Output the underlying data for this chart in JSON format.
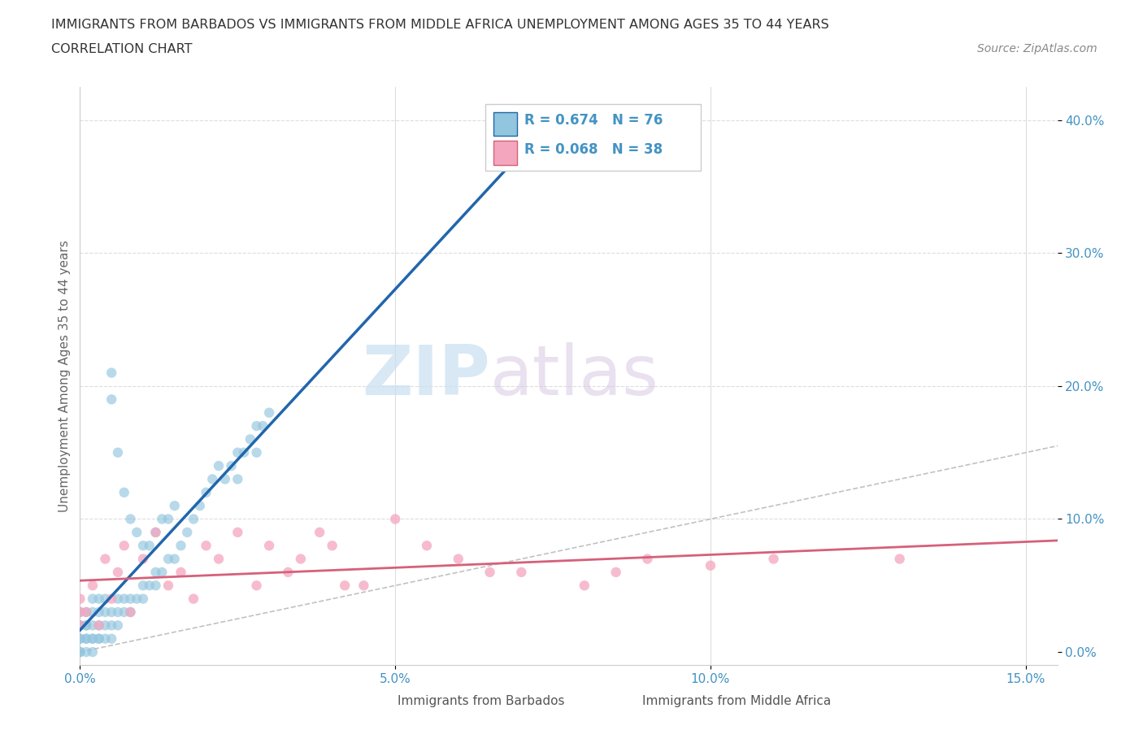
{
  "title_line1": "IMMIGRANTS FROM BARBADOS VS IMMIGRANTS FROM MIDDLE AFRICA UNEMPLOYMENT AMONG AGES 35 TO 44 YEARS",
  "title_line2": "CORRELATION CHART",
  "source_text": "Source: ZipAtlas.com",
  "ylabel": "Unemployment Among Ages 35 to 44 years",
  "xlim": [
    0.0,
    0.155
  ],
  "ylim": [
    -0.01,
    0.425
  ],
  "barbados_color": "#92c5de",
  "middle_africa_color": "#f4a6be",
  "trend_barbados_color": "#2166ac",
  "trend_middle_africa_color": "#d6607a",
  "diagonal_color": "#bbbbbb",
  "legend_R_barbados": "R = 0.674",
  "legend_N_barbados": "N = 76",
  "legend_R_middle_africa": "R = 0.068",
  "legend_N_middle_africa": "N = 38",
  "watermark_zip": "ZIP",
  "watermark_atlas": "atlas",
  "barbados_label": "Immigrants from Barbados",
  "middle_africa_label": "Immigrants from Middle Africa",
  "grid_color": "#dddddd",
  "background_color": "#ffffff",
  "tick_color": "#4393c3",
  "barbados_x": [
    0.0,
    0.0,
    0.0,
    0.0,
    0.0,
    0.0,
    0.0,
    0.001,
    0.001,
    0.001,
    0.001,
    0.001,
    0.001,
    0.002,
    0.002,
    0.002,
    0.002,
    0.002,
    0.002,
    0.003,
    0.003,
    0.003,
    0.003,
    0.003,
    0.004,
    0.004,
    0.004,
    0.004,
    0.005,
    0.005,
    0.005,
    0.005,
    0.005,
    0.006,
    0.006,
    0.006,
    0.006,
    0.007,
    0.007,
    0.007,
    0.008,
    0.008,
    0.008,
    0.009,
    0.009,
    0.01,
    0.01,
    0.01,
    0.011,
    0.011,
    0.012,
    0.012,
    0.012,
    0.013,
    0.013,
    0.014,
    0.014,
    0.015,
    0.015,
    0.016,
    0.017,
    0.018,
    0.019,
    0.02,
    0.021,
    0.022,
    0.023,
    0.024,
    0.025,
    0.025,
    0.026,
    0.027,
    0.028,
    0.028,
    0.029,
    0.03
  ],
  "barbados_y": [
    0.0,
    0.0,
    0.01,
    0.01,
    0.02,
    0.02,
    0.03,
    0.0,
    0.01,
    0.01,
    0.02,
    0.02,
    0.03,
    0.0,
    0.01,
    0.01,
    0.02,
    0.03,
    0.04,
    0.01,
    0.01,
    0.02,
    0.03,
    0.04,
    0.01,
    0.02,
    0.03,
    0.04,
    0.01,
    0.02,
    0.03,
    0.19,
    0.21,
    0.02,
    0.03,
    0.04,
    0.15,
    0.03,
    0.04,
    0.12,
    0.03,
    0.04,
    0.1,
    0.04,
    0.09,
    0.04,
    0.05,
    0.08,
    0.05,
    0.08,
    0.05,
    0.06,
    0.09,
    0.06,
    0.1,
    0.07,
    0.1,
    0.07,
    0.11,
    0.08,
    0.09,
    0.1,
    0.11,
    0.12,
    0.13,
    0.14,
    0.13,
    0.14,
    0.15,
    0.13,
    0.15,
    0.16,
    0.15,
    0.17,
    0.17,
    0.18
  ],
  "middle_africa_x": [
    0.0,
    0.0,
    0.0,
    0.001,
    0.002,
    0.003,
    0.004,
    0.005,
    0.006,
    0.007,
    0.008,
    0.01,
    0.012,
    0.014,
    0.016,
    0.018,
    0.02,
    0.022,
    0.025,
    0.028,
    0.03,
    0.033,
    0.035,
    0.038,
    0.04,
    0.042,
    0.045,
    0.05,
    0.055,
    0.06,
    0.065,
    0.07,
    0.08,
    0.085,
    0.09,
    0.1,
    0.11,
    0.13
  ],
  "middle_africa_y": [
    0.02,
    0.03,
    0.04,
    0.03,
    0.05,
    0.02,
    0.07,
    0.04,
    0.06,
    0.08,
    0.03,
    0.07,
    0.09,
    0.05,
    0.06,
    0.04,
    0.08,
    0.07,
    0.09,
    0.05,
    0.08,
    0.06,
    0.07,
    0.09,
    0.08,
    0.05,
    0.05,
    0.1,
    0.08,
    0.07,
    0.06,
    0.06,
    0.05,
    0.06,
    0.07,
    0.065,
    0.07,
    0.07
  ]
}
